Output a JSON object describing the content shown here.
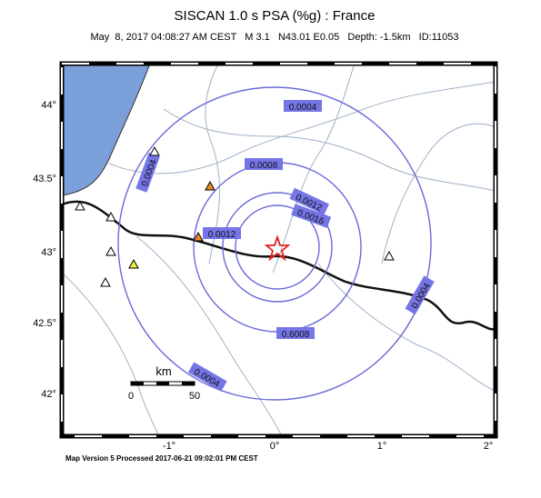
{
  "header": {
    "title": "SISCAN 1.0 s PSA (%g) : France",
    "subtitle": "May  8, 2017 04:08:27 AM CEST   M 3.1   N43.01 E0.05   Depth: -1.5km   ID:11053"
  },
  "map": {
    "lat_labels": [
      "44°",
      "43.5°",
      "43°",
      "42.5°",
      "42°"
    ],
    "lon_labels": [
      "-1°",
      "0°",
      "1°",
      "2°"
    ],
    "contour_labels": [
      "0.0004",
      "0.0004",
      "0.0004",
      "0.0004",
      "0.0008",
      "0.0012",
      "0.0016",
      "0.0012",
      "0.6008"
    ],
    "scale_bar": {
      "unit": "km",
      "labels": [
        "0",
        "50"
      ]
    }
  },
  "footer": {
    "text": "Map Version 5 Processed 2017-06-21 09:02:01 PM CEST"
  }
}
